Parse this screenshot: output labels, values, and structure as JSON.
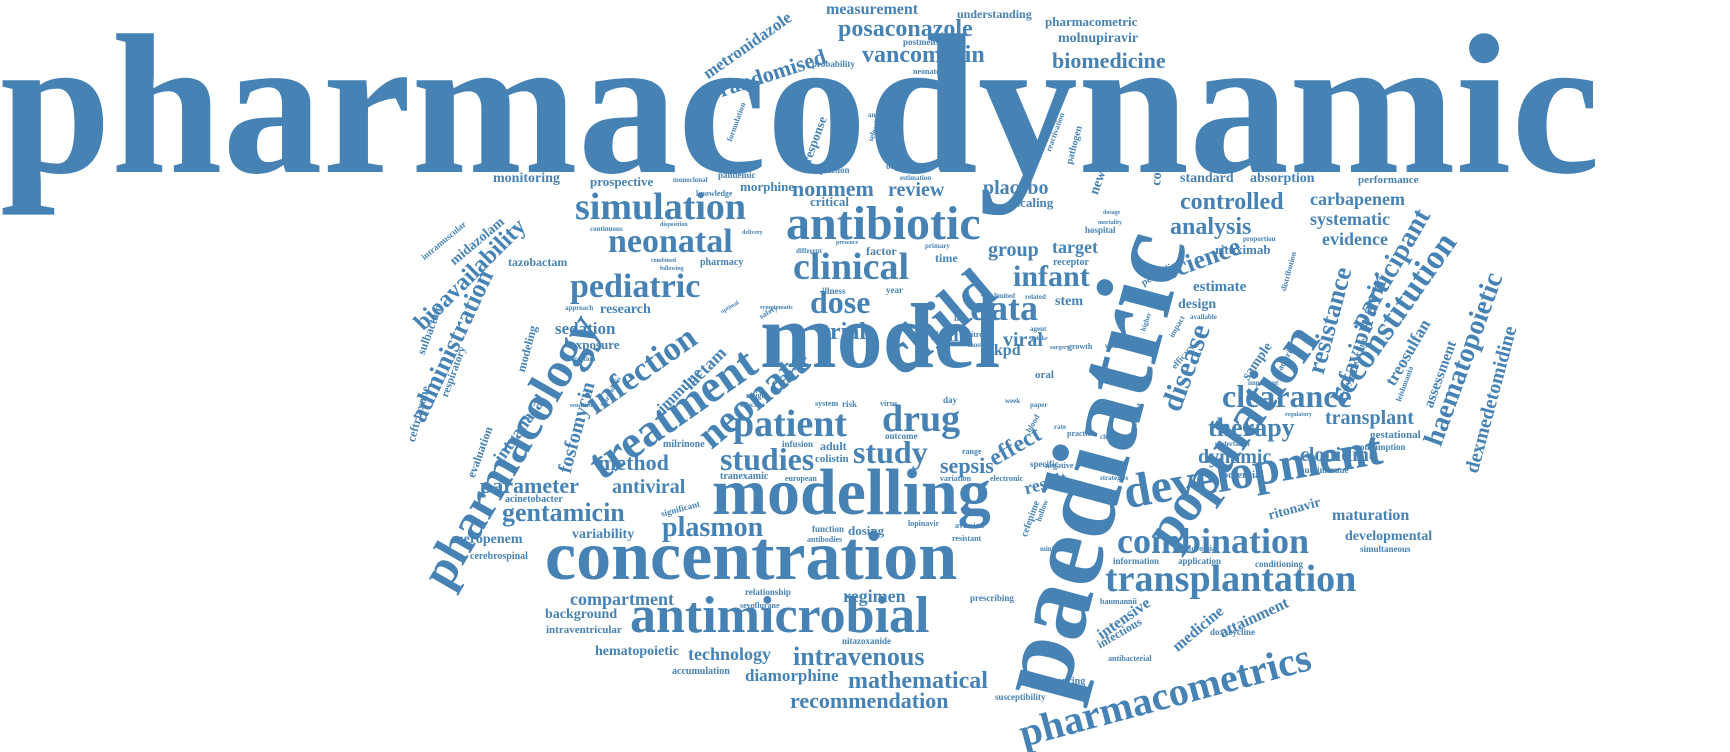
{
  "word_cloud": {
    "text_color": "#4682b4",
    "background": "#ffffff",
    "words": [
      {
        "text": "pharmacodynamic"
      },
      {
        "text": "paediatric"
      },
      {
        "text": "model"
      },
      {
        "text": "concentration"
      },
      {
        "text": "modelling"
      },
      {
        "text": "antimicrobial"
      },
      {
        "text": "population"
      },
      {
        "text": "development"
      },
      {
        "text": "pharmacology"
      },
      {
        "text": "child"
      },
      {
        "text": "antibiotic"
      },
      {
        "text": "treatment"
      },
      {
        "text": "pharmacometrics"
      },
      {
        "text": "transplantation"
      },
      {
        "text": "combination"
      },
      {
        "text": "simulation"
      },
      {
        "text": "neonatal"
      },
      {
        "text": "pediatric"
      },
      {
        "text": "clinical"
      },
      {
        "text": "neonate"
      },
      {
        "text": "infection"
      },
      {
        "text": "patient"
      },
      {
        "text": "drug"
      },
      {
        "text": "study"
      },
      {
        "text": "studies"
      },
      {
        "text": "data"
      },
      {
        "text": "dose"
      },
      {
        "text": "infant"
      },
      {
        "text": "disease"
      },
      {
        "text": "clearance"
      },
      {
        "text": "therapy"
      },
      {
        "text": "plasmon"
      },
      {
        "text": "gentamicin"
      },
      {
        "text": "intravenous"
      },
      {
        "text": "mathematical"
      },
      {
        "text": "recommendation"
      },
      {
        "text": "reconstitution"
      },
      {
        "text": "haematopoietic"
      },
      {
        "text": "participant"
      },
      {
        "text": "resistance"
      },
      {
        "text": "favipiravir"
      },
      {
        "text": "administration"
      },
      {
        "text": "bioavailability"
      },
      {
        "text": "vancomycin"
      },
      {
        "text": "posaconazole"
      },
      {
        "text": "randomised"
      },
      {
        "text": "biomedicine"
      },
      {
        "text": "measurement"
      },
      {
        "text": "metronidazole"
      },
      {
        "text": "controlled"
      },
      {
        "text": "analysis"
      },
      {
        "text": "science"
      },
      {
        "text": "carbapenem"
      },
      {
        "text": "systematic"
      },
      {
        "text": "evidence"
      },
      {
        "text": "dexmedetomidine"
      },
      {
        "text": "treosulfan"
      },
      {
        "text": "assessment"
      },
      {
        "text": "transplant"
      },
      {
        "text": "clonidine"
      },
      {
        "text": "dynamic"
      },
      {
        "text": "maturation"
      },
      {
        "text": "developmental"
      },
      {
        "text": "ritonavir"
      },
      {
        "text": "parameter"
      },
      {
        "text": "antiviral"
      },
      {
        "text": "method"
      },
      {
        "text": "effect"
      },
      {
        "text": "sepsis"
      },
      {
        "text": "result"
      },
      {
        "text": "compartment"
      },
      {
        "text": "regimen"
      },
      {
        "text": "technology"
      },
      {
        "text": "diamorphine"
      },
      {
        "text": "hematopoietic"
      },
      {
        "text": "meropenem"
      },
      {
        "text": "variability"
      },
      {
        "text": "fosfomycin"
      },
      {
        "text": "intranasal"
      },
      {
        "text": "midazolam"
      },
      {
        "text": "sedation"
      },
      {
        "text": "exposure"
      },
      {
        "text": "research"
      },
      {
        "text": "nonmem"
      },
      {
        "text": "review"
      },
      {
        "text": "placebo"
      },
      {
        "text": "group"
      },
      {
        "text": "target"
      },
      {
        "text": "trial"
      },
      {
        "text": "cell"
      },
      {
        "text": "viral"
      },
      {
        "text": "pkpd"
      },
      {
        "text": "care"
      },
      {
        "text": "lactam"
      },
      {
        "text": "immune"
      },
      {
        "text": "monitoring"
      },
      {
        "text": "prospective"
      },
      {
        "text": "morphine"
      },
      {
        "text": "critical"
      },
      {
        "text": "scaling"
      },
      {
        "text": "standard"
      },
      {
        "text": "absorption"
      },
      {
        "text": "performance"
      },
      {
        "text": "rituximab"
      },
      {
        "text": "estimate"
      },
      {
        "text": "design"
      },
      {
        "text": "stem"
      },
      {
        "text": "conclusion"
      },
      {
        "text": "newborn"
      },
      {
        "text": "malnutrition"
      },
      {
        "text": "response"
      },
      {
        "text": "pharmacometric"
      },
      {
        "text": "molnupiravir"
      },
      {
        "text": "understanding"
      },
      {
        "text": "postmenstrual"
      },
      {
        "text": "neonatology"
      },
      {
        "text": "probability"
      },
      {
        "text": "ceftriaxone"
      },
      {
        "text": "sulbactam"
      },
      {
        "text": "respiratory"
      },
      {
        "text": "modeling"
      },
      {
        "text": "evaluation"
      },
      {
        "text": "tazobactam"
      },
      {
        "text": "intramuscular"
      },
      {
        "text": "milrinone"
      },
      {
        "text": "acinetobacter"
      },
      {
        "text": "cerebrospinal"
      },
      {
        "text": "background"
      },
      {
        "text": "intraventricular"
      },
      {
        "text": "accumulation"
      },
      {
        "text": "tranexamic"
      },
      {
        "text": "colistin"
      },
      {
        "text": "dosing"
      },
      {
        "text": "adult"
      },
      {
        "text": "intensive"
      },
      {
        "text": "infectious"
      },
      {
        "text": "medicine"
      },
      {
        "text": "attainment"
      },
      {
        "text": "sequencing"
      },
      {
        "text": "susceptibility"
      },
      {
        "text": "prescribing"
      },
      {
        "text": "nitazoxanide"
      },
      {
        "text": "doxycycline"
      },
      {
        "text": "antibacterial"
      },
      {
        "text": "nosocomial"
      },
      {
        "text": "information"
      },
      {
        "text": "application"
      },
      {
        "text": "conditioning"
      },
      {
        "text": "simultaneous"
      },
      {
        "text": "baumannii"
      },
      {
        "text": "relationship"
      },
      {
        "text": "sevoflurane"
      },
      {
        "text": "function"
      },
      {
        "text": "antibodies"
      },
      {
        "text": "autoimmune"
      },
      {
        "text": "potential"
      },
      {
        "text": "gestational"
      },
      {
        "text": "consumption"
      },
      {
        "text": "leishmania"
      },
      {
        "text": "oxytetracycline"
      },
      {
        "text": "penicillin"
      },
      {
        "text": "pharmacy"
      },
      {
        "text": "knowledge"
      },
      {
        "text": "pandemic"
      },
      {
        "text": "suspension"
      },
      {
        "text": "infusion"
      },
      {
        "text": "european"
      },
      {
        "text": "factor"
      },
      {
        "text": "time"
      },
      {
        "text": "receptor"
      },
      {
        "text": "hospital"
      },
      {
        "text": "oral"
      },
      {
        "text": "negative"
      },
      {
        "text": "specific"
      },
      {
        "text": "electronic"
      },
      {
        "text": "variation"
      },
      {
        "text": "lopinavir"
      },
      {
        "text": "aversion"
      },
      {
        "text": "resistant"
      },
      {
        "text": "cefepime"
      },
      {
        "text": "hollow"
      },
      {
        "text": "minimum"
      },
      {
        "text": "practice"
      },
      {
        "text": "outcome"
      },
      {
        "text": "risk"
      },
      {
        "text": "system"
      },
      {
        "text": "effective"
      },
      {
        "text": "weight"
      },
      {
        "text": "significant"
      },
      {
        "text": "approach"
      },
      {
        "text": "extraction"
      },
      {
        "text": "sensitivity"
      },
      {
        "text": "fibrinolysis"
      },
      {
        "text": "experiment"
      },
      {
        "text": "formulation"
      },
      {
        "text": "mitofusine"
      },
      {
        "text": "selection"
      },
      {
        "text": "psoriasis"
      },
      {
        "text": "anesthesia"
      },
      {
        "text": "objective"
      },
      {
        "text": "estimation"
      },
      {
        "text": "reactivation"
      },
      {
        "text": "pathogen"
      },
      {
        "text": "strategies"
      },
      {
        "text": "growth"
      },
      {
        "text": "volume"
      },
      {
        "text": "efficacy"
      },
      {
        "text": "impact"
      },
      {
        "text": "important"
      },
      {
        "text": "regulatory"
      },
      {
        "text": "undertaken"
      },
      {
        "text": "proportion"
      },
      {
        "text": "distribution"
      },
      {
        "text": "bacterial"
      },
      {
        "text": "available"
      },
      {
        "text": "current"
      },
      {
        "text": "sample"
      },
      {
        "text": "monoclonal"
      },
      {
        "text": "continuous"
      },
      {
        "text": "combined"
      },
      {
        "text": "following"
      },
      {
        "text": "different"
      },
      {
        "text": "primary"
      },
      {
        "text": "illness"
      },
      {
        "text": "year"
      },
      {
        "text": "safety"
      },
      {
        "text": "optimal"
      },
      {
        "text": "delivery"
      },
      {
        "text": "disposition"
      },
      {
        "text": "presence"
      },
      {
        "text": "symptomatic"
      },
      {
        "text": "range"
      },
      {
        "text": "blood"
      },
      {
        "text": "week"
      },
      {
        "text": "paper"
      },
      {
        "text": "day"
      },
      {
        "text": "life"
      },
      {
        "text": "vitro"
      },
      {
        "text": "most"
      },
      {
        "text": "related"
      },
      {
        "text": "agent"
      },
      {
        "text": "limited"
      },
      {
        "text": "uptake"
      },
      {
        "text": "virus"
      },
      {
        "text": "change"
      },
      {
        "text": "similar"
      },
      {
        "text": "rate"
      },
      {
        "text": "surgery"
      },
      {
        "text": "dosage"
      },
      {
        "text": "mortality"
      },
      {
        "text": "higher"
      }
    ]
  }
}
